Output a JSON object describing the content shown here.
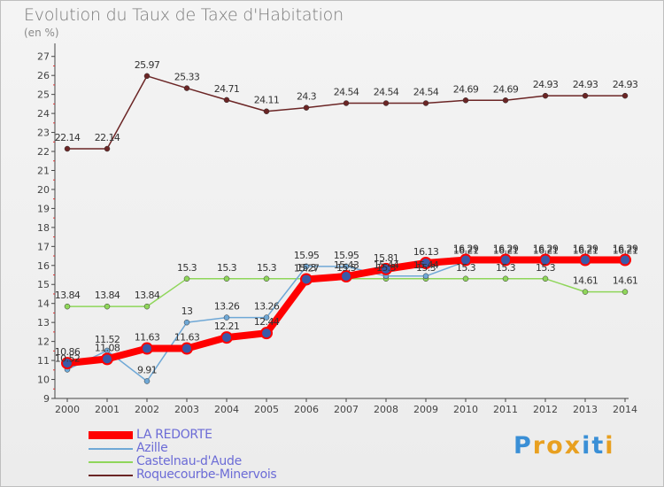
{
  "title": "Evolution du Taux de Taxe d'Habitation",
  "unit_label": "(en %)",
  "logo": {
    "text": "Proxiti",
    "letter_colors": [
      "#3a8fd6",
      "#e8a020",
      "#e8a020",
      "#e8a020",
      "#3a8fd6",
      "#3a8fd6",
      "#e8a020"
    ]
  },
  "chart_data": {
    "type": "line",
    "x": [
      "2000",
      "2001",
      "2002",
      "2003",
      "2004",
      "2005",
      "2006",
      "2007",
      "2008",
      "2009",
      "2010",
      "2011",
      "2012",
      "2013",
      "2014"
    ],
    "y_ticks": [
      9,
      10,
      11,
      12,
      13,
      14,
      15,
      16,
      17,
      18,
      19,
      20,
      21,
      22,
      23,
      24,
      25,
      26,
      27
    ],
    "ylim": [
      9,
      27.5
    ],
    "grid": false,
    "legend_position": "bottom-left",
    "series": [
      {
        "name": "LA REDORTE",
        "color": "#ff0000",
        "values": [
          10.86,
          11.08,
          11.63,
          11.63,
          12.21,
          12.44,
          15.27,
          15.43,
          15.81,
          16.13,
          16.29,
          16.29,
          16.29,
          16.29,
          16.29
        ],
        "labels": [
          "10.86",
          "11.08",
          "11.63",
          "11.63",
          "12.21",
          "12.44",
          "15.27",
          "15.43",
          "15.81",
          "16.13",
          "16.29",
          "16.29",
          "16.29",
          "16.29",
          "16.29"
        ]
      },
      {
        "name": "Azille",
        "color": "#6fa8d6",
        "values": [
          10.52,
          11.52,
          9.91,
          13,
          13.26,
          13.26,
          15.95,
          15.95,
          15.44,
          15.44,
          16.21,
          16.21,
          16.21,
          16.21,
          16.21
        ],
        "labels": [
          "10.52",
          "11.52",
          "9.91",
          "13",
          "13.26",
          "13.26",
          "15.95",
          "15.95",
          "15.44",
          "15.44",
          "16.21",
          "16.21",
          "16.21",
          "16.21",
          "16.21"
        ]
      },
      {
        "name": "Castelnau-d'Aude",
        "color": "#8fd65a",
        "values": [
          13.84,
          13.84,
          13.84,
          15.3,
          15.3,
          15.3,
          15.3,
          15.3,
          15.3,
          15.3,
          15.3,
          15.3,
          15.3,
          14.61,
          14.61
        ],
        "labels": [
          "13.84",
          "13.84",
          "13.84",
          "15.3",
          "15.3",
          "15.3",
          "15.3",
          "15.3",
          "15.3",
          "15.3",
          "15.3",
          "15.3",
          "15.3",
          "14.61",
          "14.61"
        ]
      },
      {
        "name": "Roquecourbe-Minervois",
        "color": "#6b2525",
        "values": [
          22.14,
          22.14,
          25.97,
          25.33,
          24.71,
          24.11,
          24.3,
          24.54,
          24.54,
          24.54,
          24.69,
          24.69,
          24.93,
          24.93,
          24.93
        ],
        "labels": [
          "22.14",
          "22.14",
          "25.97",
          "25.33",
          "24.71",
          "24.11",
          "24.3",
          "24.54",
          "24.54",
          "24.54",
          "24.69",
          "24.69",
          "24.93",
          "24.93",
          "24.93"
        ]
      }
    ]
  }
}
